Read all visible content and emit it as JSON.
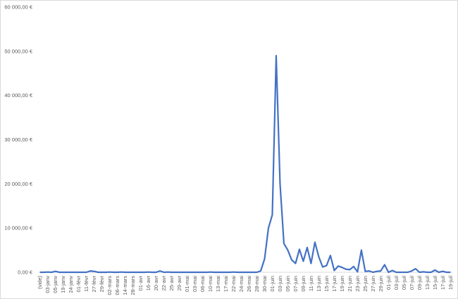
{
  "chart_data": {
    "type": "line",
    "categories": [
      "(vide)",
      null,
      "03-janv",
      null,
      "05-janv",
      null,
      "19-janv",
      null,
      "24-janv",
      null,
      "01-févr",
      null,
      "11-févr",
      null,
      "27-févr",
      null,
      "29-févr",
      null,
      "02-mars",
      null,
      "06-mars",
      null,
      "14-mars",
      null,
      "28-mars",
      null,
      "01-avr",
      null,
      "16-avr",
      null,
      "20-avr",
      null,
      "22-avr",
      null,
      "25-avr",
      null,
      "29-avr",
      null,
      "01-mai",
      null,
      "03-mai",
      null,
      "06-mai",
      null,
      "10-mai",
      null,
      "13-mai",
      null,
      "17-mai",
      null,
      "22-mai",
      null,
      "24-mai",
      null,
      "26-mai",
      null,
      "28-mai",
      null,
      "30-mai",
      null,
      "01-juin",
      null,
      "03-juin",
      null,
      "05-juin",
      null,
      "07-juin",
      null,
      "09-juin",
      null,
      "11-juin",
      null,
      "13-juin",
      null,
      "15-juin",
      null,
      "17-juin",
      null,
      "19-juin",
      null,
      "21-juin",
      null,
      "23-juin",
      null,
      "25-juin",
      null,
      "27-juin",
      null,
      "29-juin",
      null,
      "01-juil",
      null,
      "03-juil",
      null,
      "05-juil",
      null,
      "07-juil",
      null,
      "09-juil",
      null,
      "13-juil",
      null,
      "15-juil",
      null,
      "17-juil",
      null,
      "19-juil"
    ],
    "series": [
      {
        "color": "#4472c4",
        "values": [
          0,
          0,
          50,
          0,
          200,
          0,
          0,
          0,
          0,
          0,
          0,
          0,
          0,
          300,
          200,
          0,
          0,
          0,
          50,
          0,
          0,
          50,
          0,
          0,
          0,
          0,
          0,
          0,
          50,
          0,
          0,
          300,
          0,
          50,
          0,
          0,
          0,
          0,
          0,
          0,
          0,
          0,
          0,
          0,
          50,
          0,
          0,
          0,
          0,
          0,
          50,
          0,
          0,
          0,
          0,
          0,
          0,
          300,
          3000,
          10000,
          13000,
          49000,
          20000,
          6500,
          5000,
          2800,
          2000,
          5200,
          2500,
          5600,
          2000,
          6800,
          3500,
          1200,
          1500,
          3800,
          400,
          1400,
          1100,
          700,
          600,
          1300,
          100,
          5000,
          200,
          300,
          0,
          200,
          300,
          1700,
          0,
          400,
          0,
          0,
          0,
          0,
          300,
          800,
          0,
          100,
          0,
          0,
          500,
          0,
          200,
          0,
          0
        ]
      }
    ],
    "ylim": [
      0,
      60000
    ],
    "yticks": [
      {
        "value": 0,
        "label": "0,00 €"
      },
      {
        "value": 10000,
        "label": "10 000,00 €"
      },
      {
        "value": 20000,
        "label": "20 000,00 €"
      },
      {
        "value": 30000,
        "label": "30 000,00 €"
      },
      {
        "value": 40000,
        "label": "40 000,00 €"
      },
      {
        "value": 50000,
        "label": "50 000,00 €"
      },
      {
        "value": 60000,
        "label": "60 000,00 €"
      }
    ],
    "grid": false
  }
}
